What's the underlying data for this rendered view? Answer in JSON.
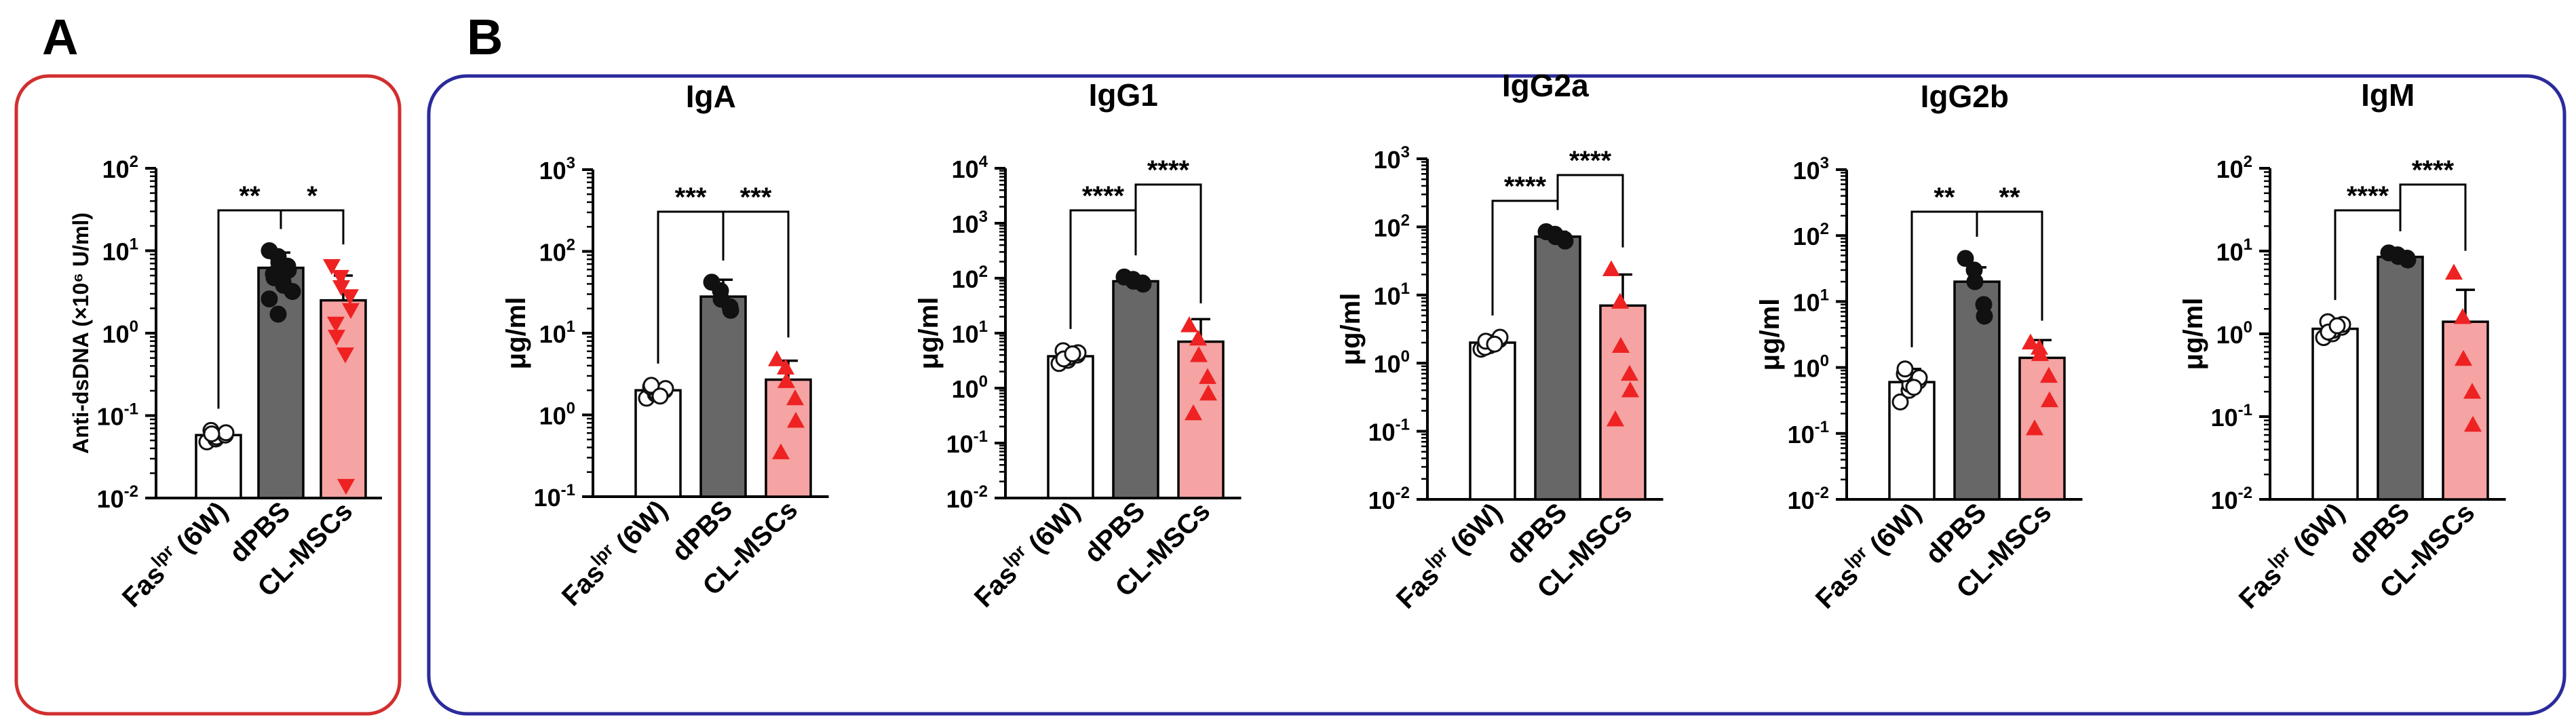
{
  "panels": {
    "A": {
      "letter": "A",
      "frame_color": "#d22f2f"
    },
    "B": {
      "letter": "B",
      "frame_color": "#2b2b9c"
    }
  },
  "colors": {
    "group1_fill": "#ffffff",
    "group2_fill": "#676767",
    "group3_fill": "#f5a3a3",
    "group3_marker": "#ee2222",
    "axis": "#000000"
  },
  "group_labels": {
    "fas": "Fas",
    "fas_sup": "lpr",
    "fas_suffix": " (6W)",
    "dpbs": "dPBS",
    "clmscs": "CL-MSCs"
  },
  "chart_data": [
    {
      "id": "anti-dsdna",
      "panel": "A",
      "type": "bar",
      "scale": "log",
      "title": "",
      "ylabel": "Anti-dsDNA (×10⁶ U/ml)",
      "ylim_exp": [
        -2,
        2
      ],
      "categories": [
        "Fas(lpr) (6W)",
        "dPBS",
        "CL-MSCs"
      ],
      "values": [
        0.058,
        6.2,
        2.5
      ],
      "errors": [
        0.066,
        9.5,
        5.0
      ],
      "points": [
        [
          0.048,
          0.052,
          0.055,
          0.058,
          0.062,
          0.066,
          0.06
        ],
        [
          10,
          8.5,
          7.2,
          6.5,
          5.8,
          5.2,
          4.7,
          4.2,
          3.8,
          3.2,
          2.6,
          1.7,
          5
        ],
        [
          6.5,
          4.8,
          3.6,
          2.8,
          1.9,
          1.3,
          0.9,
          0.55,
          0.014
        ]
      ],
      "markers": [
        "circle",
        "circle",
        "triangle-down"
      ],
      "comparisons": [
        {
          "from": 0,
          "to": 1,
          "label": "**",
          "level": 0
        },
        {
          "from": 1,
          "to": 2,
          "label": "*",
          "level": 0
        }
      ]
    },
    {
      "id": "iga",
      "panel": "B",
      "type": "bar",
      "scale": "log",
      "title": "IgA",
      "ylabel": "μg/ml",
      "ylim_exp": [
        -1,
        3
      ],
      "categories": [
        "Fas(lpr) (6W)",
        "dPBS",
        "CL-MSCs"
      ],
      "values": [
        2.0,
        28,
        2.7
      ],
      "errors": [
        2.3,
        45,
        4.6
      ],
      "points": [
        [
          1.6,
          1.8,
          1.9,
          2.0,
          2.1,
          2.2,
          2.3,
          1.7
        ],
        [
          42,
          33,
          26,
          21,
          19
        ],
        [
          4.8,
          3.8,
          2.6,
          1.6,
          0.85,
          0.35
        ]
      ],
      "markers": [
        "circle",
        "circle",
        "triangle-up"
      ],
      "comparisons": [
        {
          "from": 0,
          "to": 1,
          "label": "***",
          "level": 0
        },
        {
          "from": 1,
          "to": 2,
          "label": "***",
          "level": 0
        }
      ]
    },
    {
      "id": "igg1",
      "panel": "B",
      "type": "bar",
      "scale": "log",
      "title": "IgG1",
      "ylabel": "μg/ml",
      "ylim_exp": [
        -2,
        4
      ],
      "categories": [
        "Fas(lpr) (6W)",
        "dPBS",
        "CL-MSCs"
      ],
      "values": [
        3.8,
        88,
        7.0
      ],
      "errors": [
        4.8,
        100,
        18
      ],
      "points": [
        [
          2.8,
          3.2,
          3.6,
          4.0,
          4.4,
          4.8,
          3.4,
          4.2
        ],
        [
          105,
          95,
          88,
          82,
          78
        ],
        [
          14,
          8,
          4,
          1.6,
          0.8,
          0.35
        ]
      ],
      "markers": [
        "circle",
        "circle",
        "triangle-up"
      ],
      "comparisons": [
        {
          "from": 0,
          "to": 1,
          "label": "****",
          "level": 0
        },
        {
          "from": 1,
          "to": 2,
          "label": "****",
          "level": 1
        }
      ]
    },
    {
      "id": "igg2a",
      "panel": "B",
      "type": "bar",
      "scale": "log",
      "title": "IgG2a",
      "ylabel": "μg/ml",
      "ylim_exp": [
        -2,
        3
      ],
      "categories": [
        "Fas(lpr) (6W)",
        "dPBS",
        "CL-MSCs"
      ],
      "values": [
        2.0,
        72,
        7.0
      ],
      "errors": [
        2.4,
        85,
        20
      ],
      "points": [
        [
          1.6,
          1.8,
          2.0,
          2.2,
          2.4,
          1.7,
          2.1,
          1.9
        ],
        [
          85,
          78,
          72,
          66,
          62
        ],
        [
          24,
          8,
          1.8,
          0.7,
          0.4,
          0.15
        ]
      ],
      "markers": [
        "circle",
        "circle",
        "triangle-up"
      ],
      "comparisons": [
        {
          "from": 0,
          "to": 1,
          "label": "****",
          "level": 0
        },
        {
          "from": 1,
          "to": 2,
          "label": "****",
          "level": 1
        }
      ]
    },
    {
      "id": "igg2b",
      "panel": "B",
      "type": "bar",
      "scale": "log",
      "title": "IgG2b",
      "ylabel": "μg/ml",
      "ylim_exp": [
        -2,
        3
      ],
      "categories": [
        "Fas(lpr) (6W)",
        "dPBS",
        "CL-MSCs"
      ],
      "values": [
        0.6,
        20,
        1.4
      ],
      "errors": [
        0.95,
        33,
        2.6
      ],
      "points": [
        [
          0.3,
          0.45,
          0.55,
          0.62,
          0.7,
          0.8,
          0.95,
          0.5
        ],
        [
          45,
          30,
          20,
          9,
          6
        ],
        [
          2.4,
          2.0,
          1.6,
          0.75,
          0.32,
          0.12
        ]
      ],
      "markers": [
        "circle",
        "circle",
        "triangle-up"
      ],
      "comparisons": [
        {
          "from": 0,
          "to": 1,
          "label": "**",
          "level": 0
        },
        {
          "from": 1,
          "to": 2,
          "label": "**",
          "level": 0
        }
      ]
    },
    {
      "id": "igm",
      "panel": "B",
      "type": "bar",
      "scale": "log",
      "title": "IgM",
      "ylabel": "μg/ml",
      "ylim_exp": [
        -2,
        2
      ],
      "categories": [
        "Fas(lpr) (6W)",
        "dPBS",
        "CL-MSCs"
      ],
      "values": [
        1.15,
        8.5,
        1.4
      ],
      "errors": [
        1.5,
        9.5,
        3.4
      ],
      "points": [
        [
          0.9,
          1.0,
          1.1,
          1.2,
          1.3,
          1.4,
          1.05,
          1.25
        ],
        [
          9.5,
          9.0,
          8.6,
          8.2,
          7.8
        ],
        [
          5.5,
          1.6,
          0.5,
          0.2,
          0.08
        ]
      ],
      "markers": [
        "circle",
        "circle",
        "triangle-up"
      ],
      "comparisons": [
        {
          "from": 0,
          "to": 1,
          "label": "****",
          "level": 0
        },
        {
          "from": 1,
          "to": 2,
          "label": "****",
          "level": 1
        }
      ]
    }
  ]
}
